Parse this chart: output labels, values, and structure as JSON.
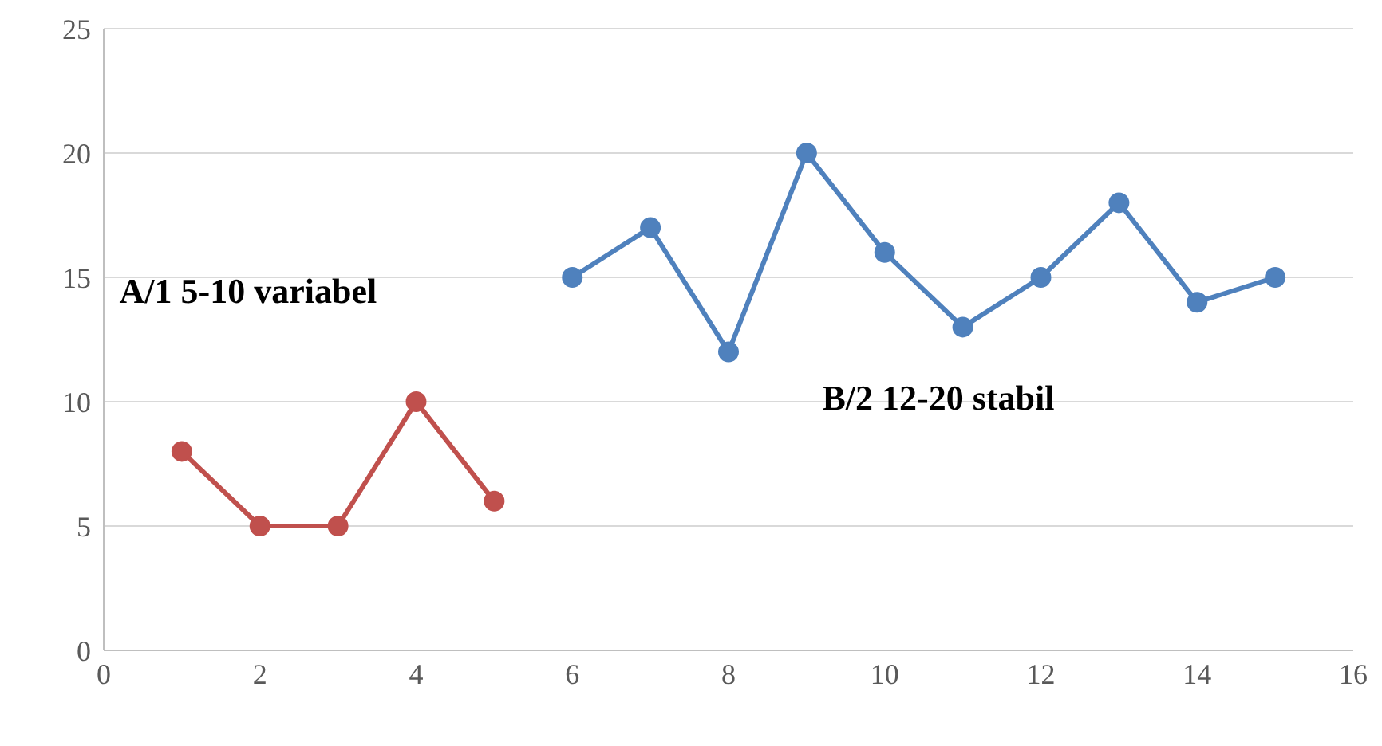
{
  "chart_data": {
    "type": "line",
    "xlim": [
      0,
      16
    ],
    "xticks": [
      0,
      2,
      4,
      6,
      8,
      10,
      12,
      14,
      16
    ],
    "ylim": [
      0,
      25
    ],
    "yticks": [
      0,
      5,
      10,
      15,
      20,
      25
    ],
    "grid": "y",
    "marker": "circle",
    "line_style": "solid",
    "legend": false,
    "series": [
      {
        "name": "A/1 5-10 variabel",
        "color": "#c0504d",
        "x": [
          1,
          2,
          3,
          4,
          5
        ],
        "values": [
          8,
          5,
          5,
          10,
          6
        ]
      },
      {
        "name": "B/2 12-20 stabil",
        "color": "#4f81bd",
        "x": [
          6,
          7,
          8,
          9,
          10,
          11,
          12,
          13,
          14,
          15
        ],
        "values": [
          15,
          17,
          12,
          20,
          16,
          13,
          15,
          18,
          14,
          15
        ]
      }
    ]
  }
}
